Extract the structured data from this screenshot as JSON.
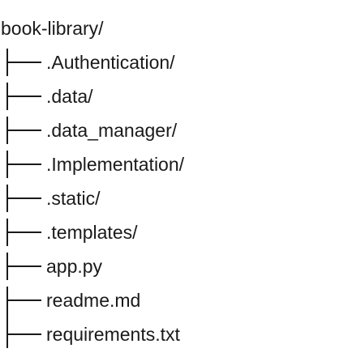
{
  "tree": {
    "root": "book-library/",
    "items": [
      ".Authentication/",
      ".data/",
      ".data_manager/",
      ".Implementation/",
      ".static/",
      ".templates/",
      "app.py",
      "readme.md",
      "requirements.txt"
    ]
  }
}
